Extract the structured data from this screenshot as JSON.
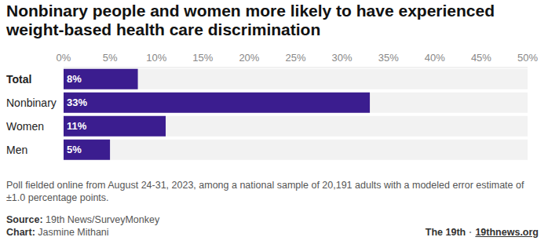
{
  "chart_data": {
    "type": "bar",
    "orientation": "horizontal",
    "title": "Nonbinary people and women more likely to have experienced weight-based health care discrimination",
    "categories": [
      "Total",
      "Nonbinary",
      "Women",
      "Men"
    ],
    "values": [
      8,
      33,
      11,
      5
    ],
    "value_labels": [
      "8%",
      "33%",
      "11%",
      "5%"
    ],
    "data_labels": true,
    "color": "#3b1d8f",
    "xlim": [
      0,
      50
    ],
    "xticks": [
      {
        "value": 0,
        "label": "0%"
      },
      {
        "value": 5,
        "label": "5%"
      },
      {
        "value": 10,
        "label": "10%"
      },
      {
        "value": 15,
        "label": "15%"
      },
      {
        "value": 20,
        "label": "20%"
      },
      {
        "value": 25,
        "label": "25%"
      },
      {
        "value": 30,
        "label": "30%"
      },
      {
        "value": 35,
        "label": "35%"
      },
      {
        "value": 40,
        "label": "40%"
      },
      {
        "value": 45,
        "label": "45%"
      },
      {
        "value": 50,
        "label": "50%"
      }
    ],
    "grid": false,
    "caption": "Poll fielded online from August 24-31, 2023, among a national sample of 20,191 adults with a modeled error estimate of ±1.0 percentage points.",
    "source": "Source: 19th News/SurveyMonkey",
    "credit": "Chart: Jasmine Mithani",
    "branding": [
      "The 19th",
      "·",
      "19thnews.org"
    ]
  }
}
